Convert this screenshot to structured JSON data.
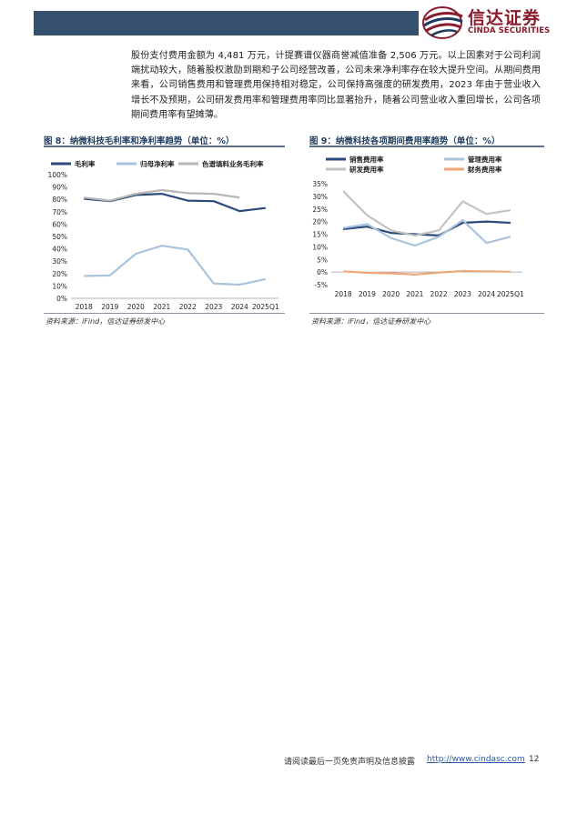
{
  "header": {
    "logo_name": "信达证券",
    "logo_en": "CINDA SECURITIES"
  },
  "body_text": "股份支付费用金额为 4,481 万元，计提赛谱仪器商誉减值准备 2,506 万元。以上因素对于公司利润端扰动较大，随着股权激励到期和子公司经营改善，公司未来净利率存在较大提升空间。从期间费用来看，公司销售费用和管理费用保持相对稳定，公司保持高强度的研发费用，2023 年由于营业收入增长不及预期，公司研发费用率和管理费用率同比显著抬升，随着公司营业收入重回增长，公司各项期间费用率有望摊薄。",
  "figures": [
    {
      "title": "图 8：纳微科技毛利率和净利率趋势（单位：%）",
      "source": "资料来源：iFind，信达证券研发中心"
    },
    {
      "title": "图 9：纳微科技各项期间费用率趋势（单位：%）",
      "source": "资料来源：iFind，信达证券研发中心"
    }
  ],
  "chart_data": [
    {
      "type": "line",
      "categories": [
        "2018",
        "2019",
        "2020",
        "2021",
        "2022",
        "2023",
        "2024",
        "2025Q1"
      ],
      "ylim": [
        0,
        100
      ],
      "yticks": [
        "0%",
        "10%",
        "20%",
        "30%",
        "40%",
        "50%",
        "60%",
        "70%",
        "80%",
        "90%",
        "100%"
      ],
      "legend_position": "top-left",
      "series": [
        {
          "name": "毛利率",
          "color": "#2c4a7c",
          "values": [
            80.5,
            78.5,
            83.5,
            84.5,
            79,
            78.5,
            70.5,
            73
          ]
        },
        {
          "name": "归母净利率",
          "color": "#a9c3dd",
          "values": [
            18,
            18.5,
            36,
            42.5,
            39.5,
            12,
            11,
            15.5
          ]
        },
        {
          "name": "色谱填料业务毛利率",
          "color": "#b6b6b6",
          "values": [
            81.5,
            79,
            84.5,
            87.5,
            85,
            84.5,
            81.5,
            null
          ]
        }
      ]
    },
    {
      "type": "line",
      "categories": [
        "2018",
        "2019",
        "2020",
        "2021",
        "2022",
        "2023",
        "2024",
        "2025Q1"
      ],
      "ylim": [
        -5,
        35
      ],
      "yticks": [
        "-5%",
        "0%",
        "5%",
        "10%",
        "15%",
        "20%",
        "25%",
        "30%",
        "35%"
      ],
      "legend_position": "top",
      "series": [
        {
          "name": "销售费用率",
          "color": "#2c4a7c",
          "values": [
            17,
            18,
            15.5,
            15,
            14.5,
            19.5,
            20,
            19.5
          ]
        },
        {
          "name": "管理费用率",
          "color": "#a9c3dd",
          "values": [
            17.5,
            19,
            13.5,
            10.5,
            14,
            20.5,
            11.5,
            14
          ]
        },
        {
          "name": "研发费用率",
          "color": "#c2c2c2",
          "values": [
            32,
            22.5,
            16.5,
            14.5,
            16.5,
            28,
            23,
            24.5
          ]
        },
        {
          "name": "财务费用率",
          "color": "#f0a878",
          "values": [
            0.3,
            -0.3,
            -0.5,
            -1,
            -0.2,
            0.4,
            0.3,
            0.1
          ]
        }
      ]
    }
  ],
  "footer": {
    "disclaimer": "请阅读最后一页免责声明及信息披露",
    "url": "http://www.cindasc.com",
    "page": "12"
  }
}
